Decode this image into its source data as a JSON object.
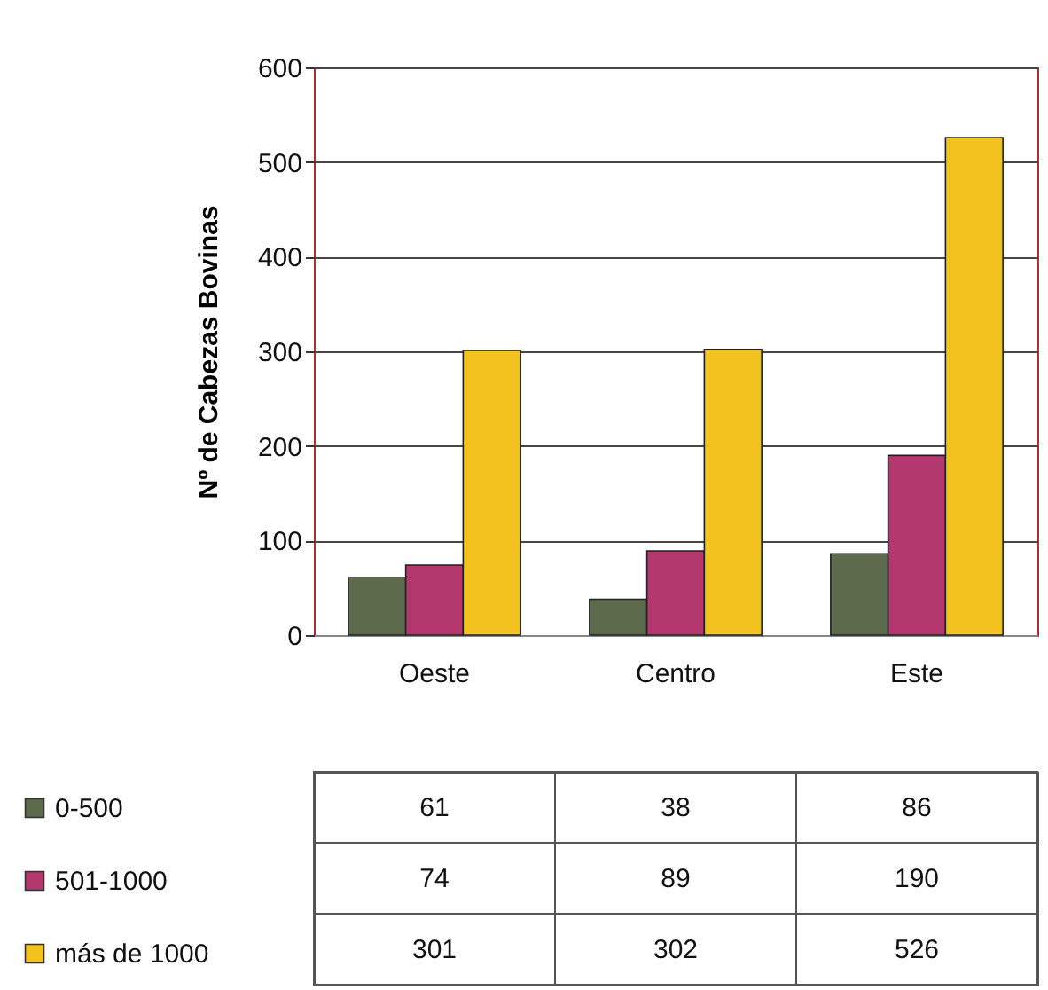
{
  "chart_data": {
    "type": "bar",
    "ylabel": "Nº de Cabezas Bovinas",
    "categories": [
      "Oeste",
      "Centro",
      "Este"
    ],
    "series": [
      {
        "name": "0-500",
        "color": "#5d6b4c",
        "values": [
          61,
          38,
          86
        ]
      },
      {
        "name": "501-1000",
        "color": "#b3386e",
        "values": [
          74,
          89,
          190
        ]
      },
      {
        "name": "más de 1000",
        "color": "#f2c21e",
        "values": [
          301,
          302,
          526
        ]
      }
    ],
    "ylim": [
      0,
      600
    ],
    "yticks": [
      0,
      100,
      200,
      300,
      400,
      500,
      600
    ],
    "grid": "y",
    "legend": "bottom left",
    "data_labels": true
  }
}
